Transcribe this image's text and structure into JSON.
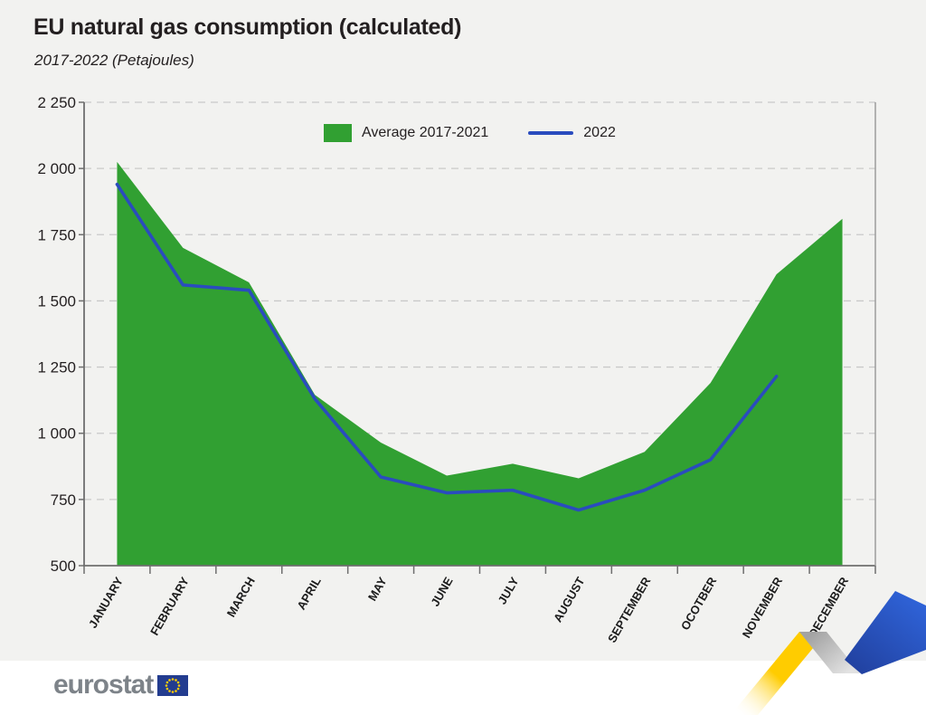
{
  "header": {
    "title": "EU natural gas consumption (calculated)",
    "subtitle": "2017-2022 (Petajoules)"
  },
  "legend": {
    "avg_label": "Average 2017-2021",
    "y2022_label": "2022"
  },
  "chart_data": {
    "type": "area",
    "title": "EU natural gas consumption (calculated)",
    "subtitle": "2017-2022 (Petajoules)",
    "categories": [
      "JANUARY",
      "FEBRUARY",
      "MARCH",
      "APRIL",
      "MAY",
      "JUNE",
      "JULY",
      "AUGUST",
      "SEPTEMBER",
      "OCOTBER",
      "NOVEMBER",
      "DECEMBER"
    ],
    "series": [
      {
        "name": "Average 2017-2021",
        "type": "area",
        "color": "#31a032",
        "values": [
          2025,
          1700,
          1570,
          1145,
          965,
          840,
          885,
          830,
          930,
          1190,
          1600,
          1810
        ]
      },
      {
        "name": "2022",
        "type": "line",
        "color": "#2a4cbe",
        "values": [
          1940,
          1560,
          1540,
          1130,
          835,
          775,
          785,
          710,
          785,
          900,
          1215,
          null
        ]
      }
    ],
    "xlabel": "",
    "ylabel": "Petajoules",
    "ylim": [
      500,
      2250
    ],
    "yticks": [
      {
        "value": 500,
        "label": "500"
      },
      {
        "value": 750,
        "label": "750"
      },
      {
        "value": 1000,
        "label": "1 000"
      },
      {
        "value": 1250,
        "label": "1 250"
      },
      {
        "value": 1500,
        "label": "1 500"
      },
      {
        "value": 1750,
        "label": "1 750"
      },
      {
        "value": 2000,
        "label": "2 000"
      },
      {
        "value": 2250,
        "label": "2 250"
      }
    ],
    "grid": "horizontal-dashed",
    "legend_position": "top-center"
  },
  "footer": {
    "logo_text": "eurostat"
  },
  "colors": {
    "background": "#f2f2f0",
    "area_green": "#31a032",
    "line_blue": "#2a4cbe",
    "axis_grey": "#6f6f6f",
    "grid_grey": "#c9c9c9",
    "right_border_grey": "#9c9c9c",
    "text_dark": "#231f20",
    "logo_grey": "#7d8389",
    "flag_blue": "#233c8f",
    "star_yellow": "#ffcc00",
    "ribbon_yellow": "#ffcc00",
    "ribbon_grey_dark": "#a3a3a3",
    "ribbon_grey_light": "#e2e2e2",
    "ribbon_blue_dark": "#21409e",
    "ribbon_blue_light": "#2f63d8"
  }
}
